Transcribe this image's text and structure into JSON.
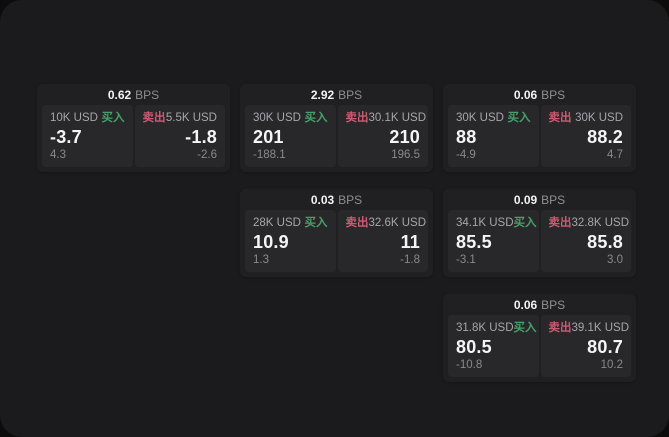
{
  "labels": {
    "bps": "BPS",
    "buy": "买入",
    "sell": "卖出"
  },
  "colors": {
    "buy_green": "#46a169",
    "sell_red": "#cd5a72",
    "panel_bg": "#1b1b1d",
    "card_bg": "#202022",
    "tile_bg": "#28282b"
  },
  "cards": [
    {
      "bps": "0.62",
      "buy": {
        "size": "10K USD",
        "price": "-3.7",
        "delta": "4.3"
      },
      "sell": {
        "size": "5.5K USD",
        "price": "-1.8",
        "delta": "-2.6"
      }
    },
    {
      "bps": "2.92",
      "buy": {
        "size": "30K USD",
        "price": "201",
        "delta": "-188.1"
      },
      "sell": {
        "size": "30.1K USD",
        "price": "210",
        "delta": "196.5"
      }
    },
    {
      "bps": "0.06",
      "buy": {
        "size": "30K USD",
        "price": "88",
        "delta": "-4.9"
      },
      "sell": {
        "size": "30K USD",
        "price": "88.2",
        "delta": "4.7"
      }
    },
    {
      "bps": "0.03",
      "buy": {
        "size": "28K USD",
        "price": "10.9",
        "delta": "1.3"
      },
      "sell": {
        "size": "32.6K USD",
        "price": "11",
        "delta": "-1.8"
      }
    },
    {
      "bps": "0.09",
      "buy": {
        "size": "34.1K USD",
        "price": "85.5",
        "delta": "-3.1"
      },
      "sell": {
        "size": "32.8K USD",
        "price": "85.8",
        "delta": "3.0"
      }
    },
    {
      "bps": "0.06",
      "buy": {
        "size": "31.8K USD",
        "price": "80.5",
        "delta": "-10.8"
      },
      "sell": {
        "size": "39.1K USD",
        "price": "80.7",
        "delta": "10.2"
      }
    }
  ]
}
